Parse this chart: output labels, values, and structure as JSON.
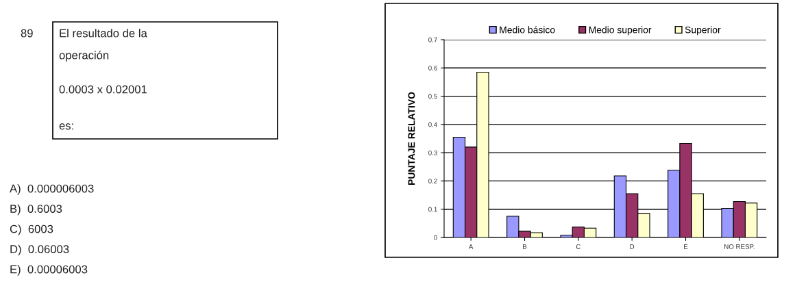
{
  "chart_data": [
    {
      "type": "other",
      "annotations": [
        "89",
        "El resultado de la",
        "operación",
        "0.0003 x 0.02001",
        "es:",
        "A)  0.000006003",
        "B)  0.6003",
        "C)  6003",
        "D)  0.06003",
        "E)  0.00006003"
      ]
    },
    {
      "type": "bar",
      "ylabel": "PUNTAJE RELATIVO",
      "categories": [
        "A",
        "B",
        "C",
        "D",
        "E",
        "NO RESP."
      ],
      "series": [
        {
          "name": "Medio básico",
          "color": "#9999ff",
          "values": [
            0.355,
            0.075,
            0.008,
            0.218,
            0.238,
            0.103
          ]
        },
        {
          "name": "Medio superior",
          "color": "#993366",
          "values": [
            0.32,
            0.022,
            0.037,
            0.155,
            0.333,
            0.127
          ]
        },
        {
          "name": "Superior",
          "color": "#ffffcc",
          "values": [
            0.585,
            0.017,
            0.033,
            0.085,
            0.155,
            0.122
          ]
        }
      ],
      "ylim": [
        0,
        0.7
      ],
      "yticks": [
        0,
        0.1,
        0.2,
        0.3,
        0.4,
        0.5,
        0.6,
        0.7
      ],
      "grid": "y",
      "legend": "top"
    }
  ]
}
